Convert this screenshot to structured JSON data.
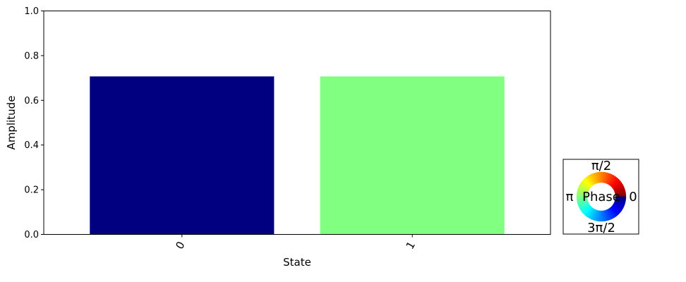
{
  "chart_data": {
    "type": "bar",
    "categories": [
      "0",
      "1"
    ],
    "values": [
      0.707,
      0.707
    ],
    "bar_colors": [
      "#000080",
      "#80ff80"
    ],
    "xlabel": "State",
    "ylabel": "Amplitude",
    "ylim": [
      0,
      1
    ],
    "yticks": [
      "0.0",
      "0.2",
      "0.4",
      "0.6",
      "0.8",
      "1.0"
    ],
    "grid": false,
    "phase_legend": {
      "title": "Phase",
      "labels": {
        "top": "π/2",
        "left": "π",
        "right": "0",
        "bottom": "3π/2"
      },
      "colormap": "jet"
    }
  }
}
